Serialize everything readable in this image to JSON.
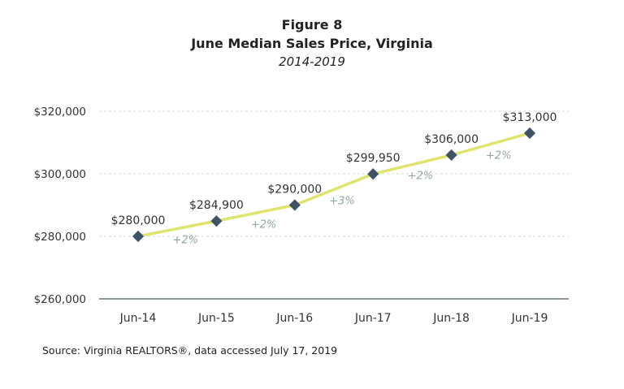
{
  "chart_data": {
    "type": "line",
    "title": "Figure 8",
    "subtitle": "June Median Sales Price, Virginia",
    "subtitle2": "2014-2019",
    "categories": [
      "Jun-14",
      "Jun-15",
      "Jun-16",
      "Jun-17",
      "Jun-18",
      "Jun-19"
    ],
    "values": [
      280000,
      284900,
      290000,
      299950,
      306000,
      313000
    ],
    "data_labels": [
      "$280,000",
      "$284,900",
      "$290,000",
      "$299,950",
      "$306,000",
      "$313,000"
    ],
    "change_labels": [
      "+2%",
      "+2%",
      "+3%",
      "+2%",
      "+2%"
    ],
    "ylim": [
      260000,
      320000
    ],
    "yticks": [
      260000,
      280000,
      300000,
      320000
    ],
    "ytick_labels": [
      "$260,000",
      "$280,000",
      "$300,000",
      "$320,000"
    ],
    "xlabel": "",
    "ylabel": "",
    "grid": true,
    "legend": "none",
    "colors": {
      "line": "#dfe46e",
      "marker": "#3e5365",
      "axis": "#8a9c90",
      "grid": "#d8d8d8",
      "change_label": "#8fa898"
    },
    "source": "Source: Virginia REALTORS®, data accessed July 17, 2019"
  }
}
